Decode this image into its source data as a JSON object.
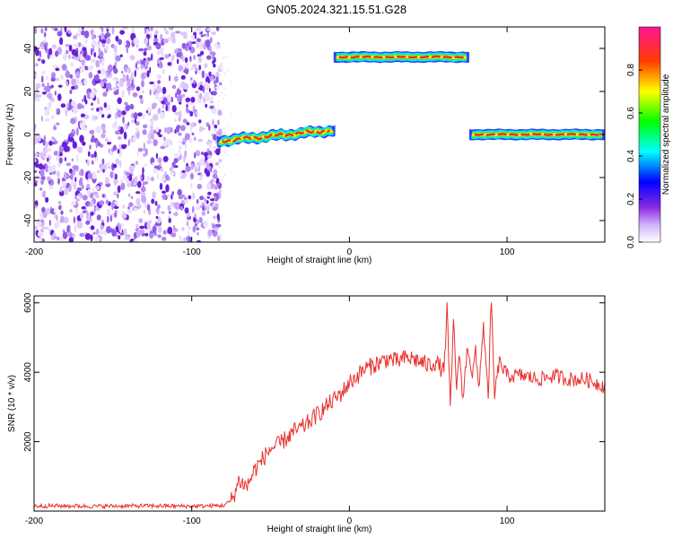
{
  "figure_title": "GN05.2024.321.15.51.G28",
  "chart_data": [
    {
      "type": "heatmap",
      "xlabel": "Height of straight line (km)",
      "ylabel": "Frequency (Hz)",
      "xlim": [
        -200,
        162
      ],
      "ylim": [
        -50,
        50
      ],
      "xticks": [
        -200,
        -100,
        0,
        100
      ],
      "yticks": [
        -40,
        -20,
        0,
        20,
        40
      ],
      "colorbar": {
        "label": "Normalized spectral amplitude",
        "range": [
          0,
          1
        ],
        "ticks": [
          0.0,
          0.2,
          0.4,
          0.6,
          0.8
        ]
      },
      "grid": false,
      "segments": [
        {
          "x_start": -200,
          "x_end": -84,
          "pattern": "noise",
          "frequency_range": [
            -50,
            48
          ]
        },
        {
          "x_start": -84,
          "x_end": -9,
          "pattern": "tone",
          "frequency_start": -3,
          "frequency_end": 2
        },
        {
          "x_start": -10,
          "x_end": 76,
          "pattern": "tone",
          "frequency_start": 36,
          "frequency_end": 36
        },
        {
          "x_start": 76,
          "x_end": 162,
          "pattern": "tone",
          "frequency_start": 0,
          "frequency_end": 0
        }
      ]
    },
    {
      "type": "line",
      "xlabel": "Height of straight line (km)",
      "ylabel": "SNR (10 * v/v)",
      "xlim": [
        -200,
        162
      ],
      "ylim": [
        0,
        6200
      ],
      "xticks": [
        -200,
        -100,
        0,
        100
      ],
      "yticks": [
        2000,
        4000,
        6000
      ],
      "grid": false,
      "series": [
        {
          "color": "#e8312f",
          "x": [
            -200,
            -180,
            -160,
            -140,
            -120,
            -100,
            -90,
            -80,
            -75,
            -72,
            -70,
            -65,
            -60,
            -55,
            -50,
            -45,
            -40,
            -35,
            -30,
            -25,
            -20,
            -15,
            -10,
            -5,
            0,
            5,
            10,
            15,
            20,
            25,
            30,
            35,
            40,
            45,
            50,
            55,
            60,
            62,
            64,
            66,
            68,
            70,
            72,
            75,
            78,
            80,
            82,
            85,
            88,
            90,
            92,
            95,
            100,
            110,
            120,
            130,
            140,
            150,
            162
          ],
          "y": [
            150,
            150,
            140,
            150,
            150,
            140,
            150,
            160,
            300,
            600,
            900,
            700,
            1200,
            1500,
            1800,
            1900,
            2100,
            2300,
            2400,
            2600,
            2800,
            3000,
            3200,
            3400,
            3700,
            3900,
            4100,
            4200,
            4300,
            4400,
            4300,
            4400,
            4400,
            4300,
            4200,
            4300,
            4000,
            5900,
            2800,
            5500,
            3600,
            4500,
            3200,
            4800,
            3900,
            4600,
            3500,
            5400,
            3200,
            6100,
            3300,
            4300,
            3900,
            3900,
            3800,
            3900,
            3800,
            3800,
            3600
          ]
        }
      ]
    }
  ]
}
